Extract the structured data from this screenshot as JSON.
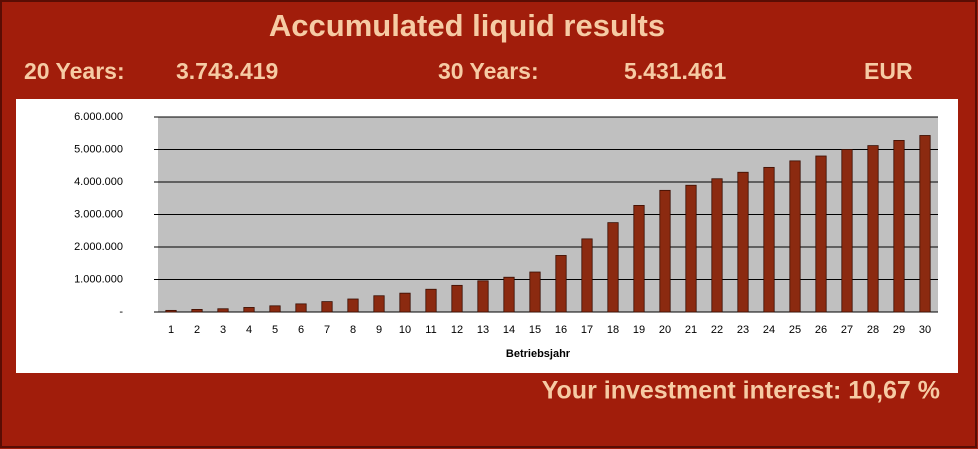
{
  "header": {
    "title": "Accumulated liquid results",
    "label_20": "20 Years:",
    "value_20": "3.743.419",
    "label_30": "30 Years:",
    "value_30": "5.431.461",
    "currency": "EUR"
  },
  "footer": {
    "interest": "Your investment interest: 10,67 %"
  },
  "chart_data": {
    "type": "bar",
    "x_label": "Betriebsjahr",
    "categories": [
      "1",
      "2",
      "3",
      "4",
      "5",
      "6",
      "7",
      "8",
      "9",
      "10",
      "11",
      "12",
      "13",
      "14",
      "15",
      "16",
      "17",
      "18",
      "19",
      "20",
      "21",
      "22",
      "23",
      "24",
      "25",
      "26",
      "27",
      "28",
      "29",
      "30"
    ],
    "values": [
      50000,
      80000,
      100000,
      140000,
      190000,
      250000,
      320000,
      400000,
      500000,
      580000,
      700000,
      820000,
      960000,
      1070000,
      1230000,
      1740000,
      2250000,
      2750000,
      3280000,
      3743419,
      3900000,
      4100000,
      4300000,
      4450000,
      4650000,
      4800000,
      5000000,
      5120000,
      5280000,
      5431461
    ],
    "color": "#8b2a10",
    "ylim": [
      0,
      6000000
    ],
    "yticks": [
      {
        "value": 0,
        "label": "-"
      },
      {
        "value": 1000000,
        "label": "1.000.000"
      },
      {
        "value": 2000000,
        "label": "2.000.000"
      },
      {
        "value": 3000000,
        "label": "3.000.000"
      },
      {
        "value": 4000000,
        "label": "4.000.000"
      },
      {
        "value": 5000000,
        "label": "5.000.000"
      },
      {
        "value": 6000000,
        "label": "6.000.000"
      }
    ],
    "grid": true
  }
}
